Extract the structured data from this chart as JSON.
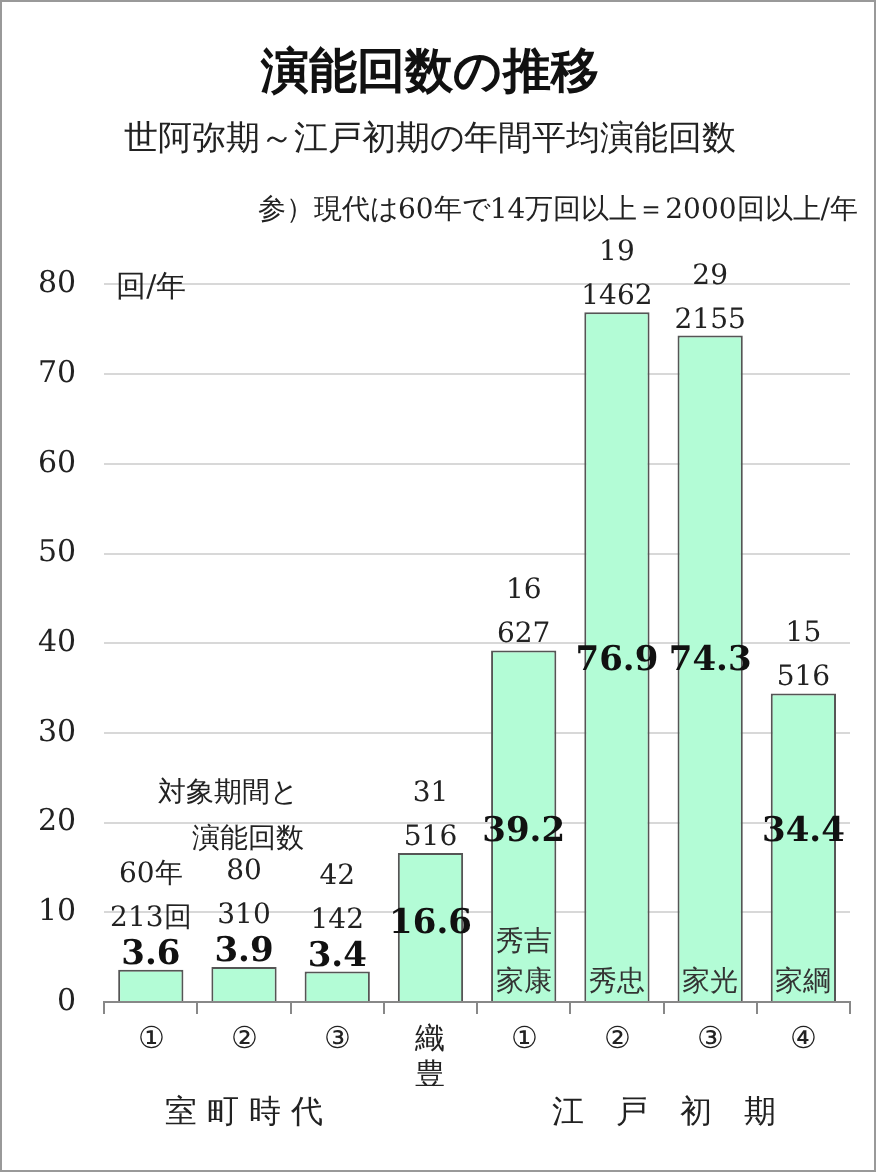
{
  "chart_data": {
    "type": "bar",
    "title": "演能回数の推移",
    "subtitle": "世阿弥期～江戸初期の年間平均演能回数",
    "ylabel": "回/年",
    "categories": [
      "①",
      "②",
      "③",
      "織豊",
      "①",
      "②",
      "③",
      "④"
    ],
    "values": [
      3.6,
      3.9,
      3.4,
      16.6,
      39.2,
      76.9,
      74.3,
      34.4
    ],
    "color": "#b3fcd6",
    "ylim": [
      0,
      80
    ],
    "yticks": [
      0,
      10,
      20,
      30,
      40,
      50,
      60,
      70,
      80
    ],
    "grid": "y",
    "data_labels": true,
    "annotations": [
      "参）現代は60年で14万回以上＝2000回以上/年",
      "対象期間と",
      "演能回数",
      "室 町 時 代",
      "江　戸　初　期",
      "60年\n213回",
      "80\n310",
      "42\n142",
      "31\n516",
      "16\n627",
      "19\n1462",
      "29\n2155",
      "15\n516",
      "秀吉",
      "家康",
      "秀忠",
      "家光",
      "家綱"
    ]
  }
}
